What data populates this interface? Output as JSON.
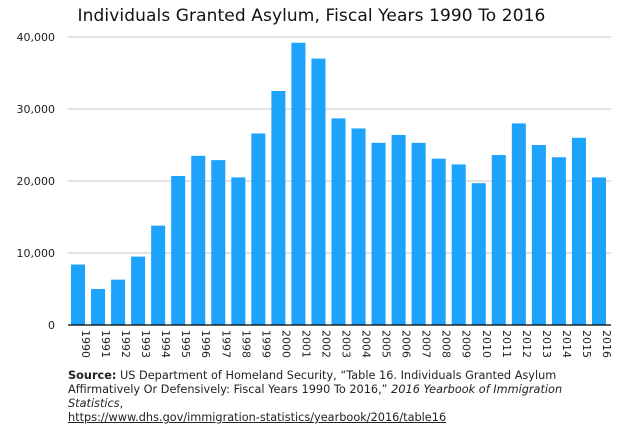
{
  "chart_data": {
    "type": "bar",
    "title": "Individuals Granted Asylum, Fiscal Years 1990 To 2016",
    "xlabel": "",
    "ylabel": "",
    "ylim": [
      0,
      40000
    ],
    "yticks": [
      "0",
      "10,000",
      "20,000",
      "30,000",
      "40,000"
    ],
    "ytick_values": [
      0,
      10000,
      20000,
      30000,
      40000
    ],
    "grid": true,
    "bar_color": "#1ea3fc",
    "categories": [
      "1990",
      "1991",
      "1992",
      "1993",
      "1994",
      "1995",
      "1996",
      "1997",
      "1998",
      "1999",
      "2000",
      "2001",
      "2002",
      "2003",
      "2004",
      "2005",
      "2006",
      "2007",
      "2008",
      "2009",
      "2010",
      "2011",
      "2012",
      "2013",
      "2014",
      "2015",
      "2016"
    ],
    "values": [
      8400,
      5000,
      6300,
      9500,
      13800,
      20700,
      23500,
      22900,
      20500,
      26600,
      32500,
      39200,
      37000,
      28700,
      27300,
      25300,
      26400,
      25300,
      23100,
      22300,
      19700,
      23600,
      28000,
      25000,
      23300,
      26000,
      20500
    ]
  },
  "source": {
    "label": "Source:",
    "text": " US Department of Homeland Security, “Table 16. Individuals Granted Asylum Affirmatively Or Defensively: Fiscal Years 1990 To 2016,”  ",
    "publication": "2016 Yearbook of Immigration Statistics",
    "after_publication": ",",
    "url": "https://www.dhs.gov/immigration-statistics/yearbook/2016/table16"
  }
}
